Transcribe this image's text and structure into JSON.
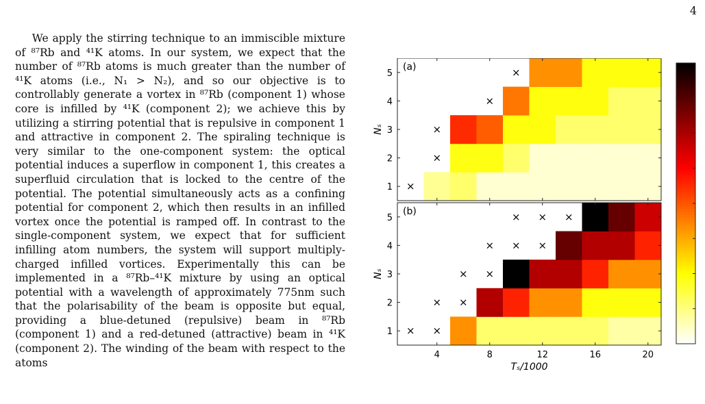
{
  "page": {
    "number": "4",
    "paragraph": "We apply the stirring technique to an immiscible mixture of ⁸⁷Rb and ⁴¹K atoms. In our system, we expect that the number of ⁸⁷Rb atoms is much greater than the number of ⁴¹K atoms (i.e., N₁ > N₂), and so our objective is to controllably generate a vortex in ⁸⁷Rb (component 1) whose core is infilled by ⁴¹K (component 2); we achieve this by utilizing a stirring potential that is repulsive in component 1 and attractive in component 2. The spiraling technique is very similar to the one-component system: the optical potential induces a superflow in component 1, this creates a superfluid circulation that is locked to the centre of the potential. The potential simultaneously acts as a confining potential for component 2, which then results in an infilled vortex once the potential is ramped off. In contrast to the single-component system, we expect that for sufficient infilling atom numbers, the system will support multiply-charged infilled vortices. Experimentally this can be implemented in a ⁸⁷Rb–⁴¹K mixture by using an optical potential with a wavelength of approximately 775nm such that the polarisability of the beam is opposite but equal, providing a blue-detuned (repulsive) beam in ⁸⁷Rb (component 1) and a red-detuned (attractive) beam in ⁴¹K (component 2). The winding of the beam with respect to the atoms"
  },
  "chart_data": {
    "type": "heatmap",
    "colormap": "hot (reversed)",
    "xlabel": "Tₛ/1000",
    "ylabel": "Nₛ",
    "x_ticks": [
      "4",
      "8",
      "12",
      "16",
      "20"
    ],
    "y_ticks": [
      "1",
      "2",
      "3",
      "4",
      "5"
    ],
    "colorbar": {
      "min": 0,
      "max": 8,
      "ticks": [
        "1",
        "2",
        "3",
        "4",
        "5",
        "6",
        "7",
        "8"
      ]
    },
    "x_values": [
      2,
      4,
      6,
      8,
      10,
      12,
      14,
      16,
      18,
      20
    ],
    "y_values": [
      1,
      2,
      3,
      4,
      5
    ],
    "panels": [
      {
        "label": "(a)",
        "grid": [
          [
            null,
            0.85,
            1.15,
            0.35,
            0.35,
            0.35,
            0.35,
            0.35,
            0.35,
            0.35
          ],
          [
            null,
            null,
            1.85,
            1.85,
            1.15,
            0.35,
            0.35,
            0.35,
            0.35,
            0.35
          ],
          [
            null,
            null,
            4.5,
            3.9,
            1.9,
            1.9,
            1.15,
            1.15,
            1.15,
            1.15
          ],
          [
            null,
            null,
            null,
            null,
            3.6,
            1.9,
            1.9,
            1.9,
            1.15,
            1.15
          ],
          [
            null,
            null,
            null,
            null,
            null,
            3.3,
            3.3,
            1.9,
            1.9,
            1.9
          ]
        ],
        "crosses": [
          [
            2,
            1
          ],
          [
            4,
            2
          ],
          [
            4,
            3
          ],
          [
            8,
            4
          ],
          [
            10,
            5
          ]
        ]
      },
      {
        "label": "(b)",
        "grid": [
          [
            null,
            null,
            3.3,
            1.15,
            1.15,
            1.15,
            1.15,
            1.15,
            0.7,
            0.7
          ],
          [
            null,
            null,
            null,
            5.9,
            4.6,
            3.3,
            3.3,
            1.9,
            1.9,
            1.9
          ],
          [
            null,
            null,
            null,
            null,
            8.0,
            5.9,
            5.9,
            4.6,
            3.3,
            3.3
          ],
          [
            null,
            null,
            null,
            null,
            null,
            null,
            6.8,
            5.9,
            5.9,
            4.6
          ],
          [
            null,
            null,
            null,
            null,
            null,
            null,
            null,
            8.0,
            6.8,
            5.6
          ]
        ],
        "crosses": [
          [
            2,
            1
          ],
          [
            4,
            1
          ],
          [
            4,
            2
          ],
          [
            6,
            2
          ],
          [
            6,
            3
          ],
          [
            8,
            3
          ],
          [
            8,
            4
          ],
          [
            10,
            4
          ],
          [
            12,
            4
          ],
          [
            10,
            5
          ],
          [
            12,
            5
          ],
          [
            14,
            5
          ]
        ]
      }
    ]
  }
}
